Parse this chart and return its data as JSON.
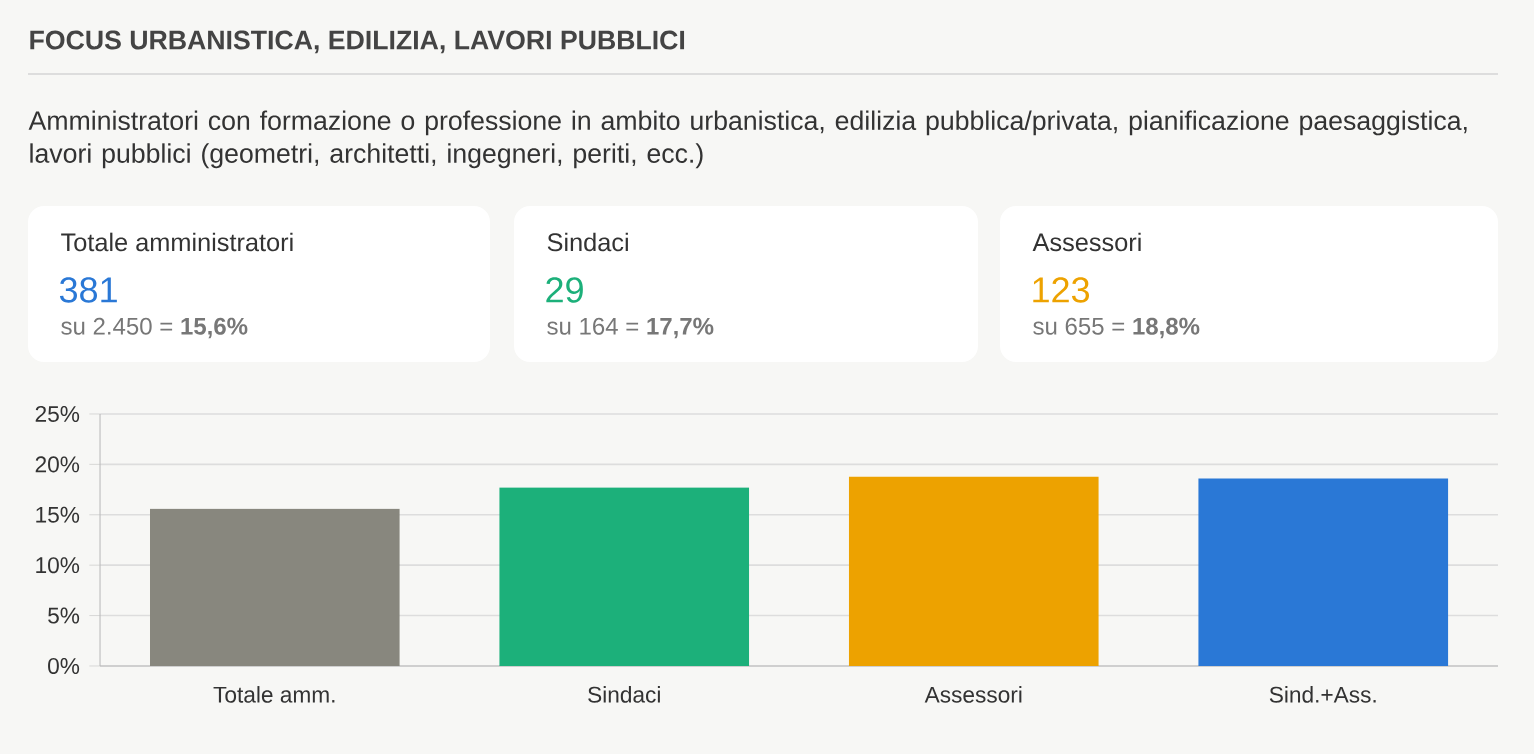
{
  "chart_data": [
    {
      "type": "other",
      "title": "FOCUS URBANISTICA, EDILIZIA, LAVORI PUBBLICI",
      "subtitle": "Amministratori con formazione o professione in ambito urbanistica, edilizia pubblica/privata, pianificazione paesaggistica, lavori pubblici (geometri, architetti, ingegneri, periti, ecc.)",
      "annotations": [
        "Totale amministratori",
        "381",
        "su 2.450 = **15,6%**",
        "Sindaci",
        "29",
        "su 164 = **17,7%**",
        "Assessori",
        "123",
        "su 655 = **18,8%**"
      ]
    },
    {
      "type": "bar",
      "categories": [
        "Totale amm.",
        "Sindaci",
        "Assessori",
        "Sind.+Ass."
      ],
      "values": [
        15.6,
        17.7,
        18.8,
        18.6
      ],
      "colors": [
        "#88877e",
        "#1cb07a",
        "#eda200",
        "#2a78d6"
      ],
      "ylim": [
        0,
        25
      ],
      "yticks": [
        {
          "value": 0,
          "label": "0%"
        },
        {
          "value": 5,
          "label": "5%"
        },
        {
          "value": 10,
          "label": "10%"
        },
        {
          "value": 15,
          "label": "15%"
        },
        {
          "value": 20,
          "label": "20%"
        },
        {
          "value": 25,
          "label": "25%"
        }
      ],
      "grid": "y"
    }
  ]
}
